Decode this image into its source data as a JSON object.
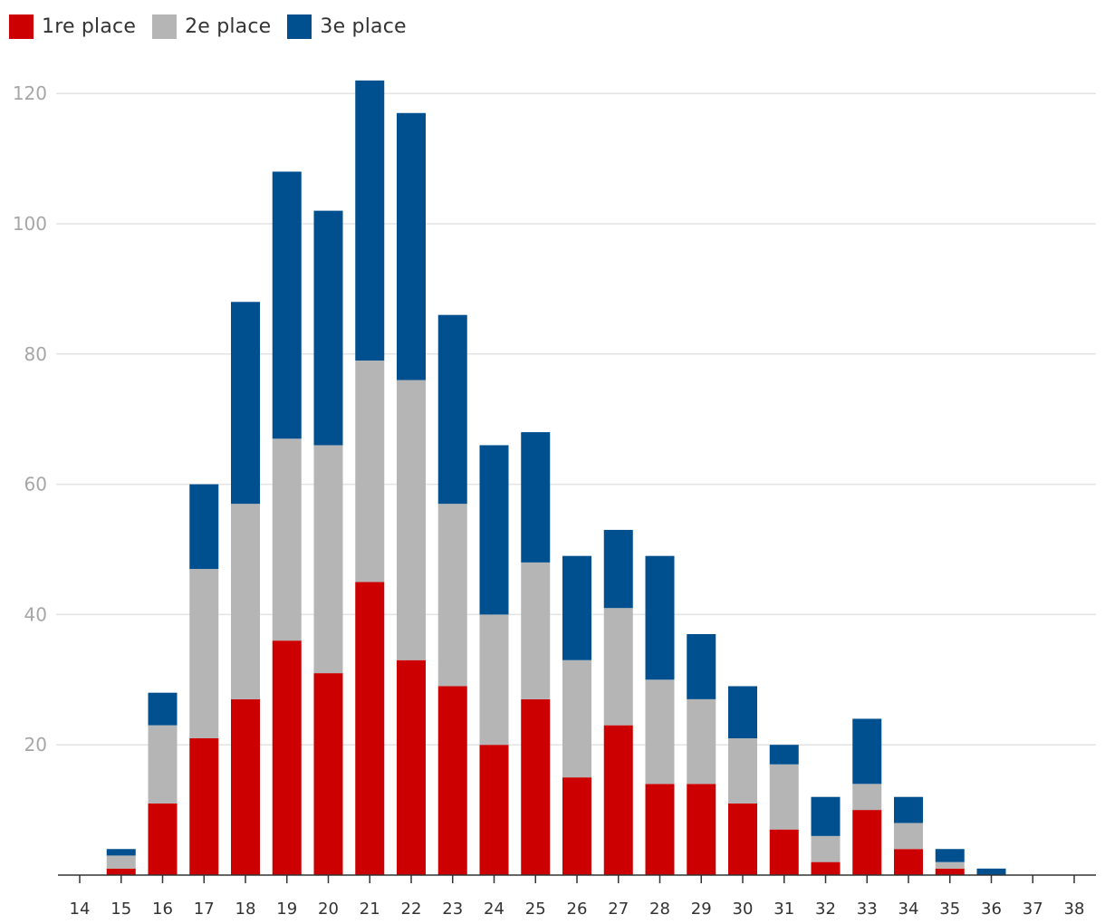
{
  "chart_data": {
    "type": "bar",
    "stacked": true,
    "legend_position": "top-left",
    "grid": true,
    "categories": [
      "14",
      "15",
      "16",
      "17",
      "18",
      "19",
      "20",
      "21",
      "22",
      "23",
      "24",
      "25",
      "26",
      "27",
      "28",
      "29",
      "30",
      "31",
      "32",
      "33",
      "34",
      "35",
      "36",
      "37",
      "38"
    ],
    "series": [
      {
        "name": "1re place",
        "color": "#cc0000",
        "values": [
          0,
          1,
          11,
          21,
          27,
          36,
          31,
          45,
          33,
          29,
          20,
          27,
          15,
          23,
          14,
          14,
          11,
          7,
          2,
          10,
          4,
          1,
          0,
          0,
          0
        ]
      },
      {
        "name": "2e place",
        "color": "#b5b5b5",
        "values": [
          0,
          2,
          12,
          26,
          30,
          31,
          35,
          34,
          43,
          28,
          20,
          21,
          18,
          18,
          16,
          13,
          10,
          10,
          4,
          4,
          4,
          1,
          0,
          0,
          0
        ]
      },
      {
        "name": "3e place",
        "color": "#00508f",
        "values": [
          0,
          1,
          5,
          13,
          31,
          41,
          36,
          43,
          41,
          29,
          26,
          20,
          16,
          12,
          19,
          10,
          8,
          3,
          6,
          10,
          4,
          2,
          1,
          0,
          0
        ]
      }
    ],
    "ylim": [
      0,
      125
    ],
    "yticks": [
      20,
      40,
      60,
      80,
      100,
      120
    ],
    "ytick_labels": [
      "20",
      "40",
      "60",
      "80",
      "100",
      "120"
    ],
    "title": "",
    "xlabel": "",
    "ylabel": ""
  }
}
